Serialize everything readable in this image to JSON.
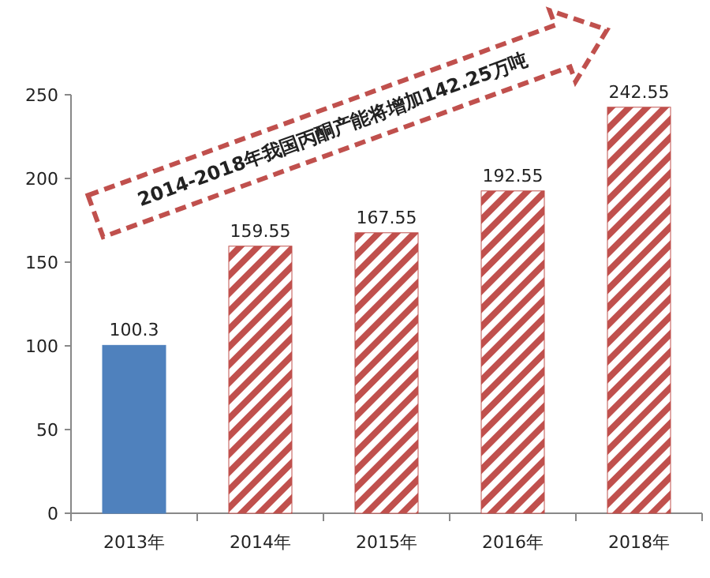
{
  "chart_data": {
    "type": "bar",
    "categories": [
      "2013年",
      "2014年",
      "2015年",
      "2016年",
      "2018年"
    ],
    "values": [
      100.3,
      159.55,
      167.55,
      192.55,
      242.55
    ],
    "colors": [
      "#4f81bd",
      "#c0504d",
      "#c0504d",
      "#c0504d",
      "#c0504d"
    ],
    "ylim": [
      0,
      250
    ],
    "yticks": [
      0,
      50,
      100,
      150,
      200,
      250
    ],
    "data_labels": true,
    "annotations": [
      "2014-2018年我国丙酮产能将增加142.25万吨"
    ]
  }
}
